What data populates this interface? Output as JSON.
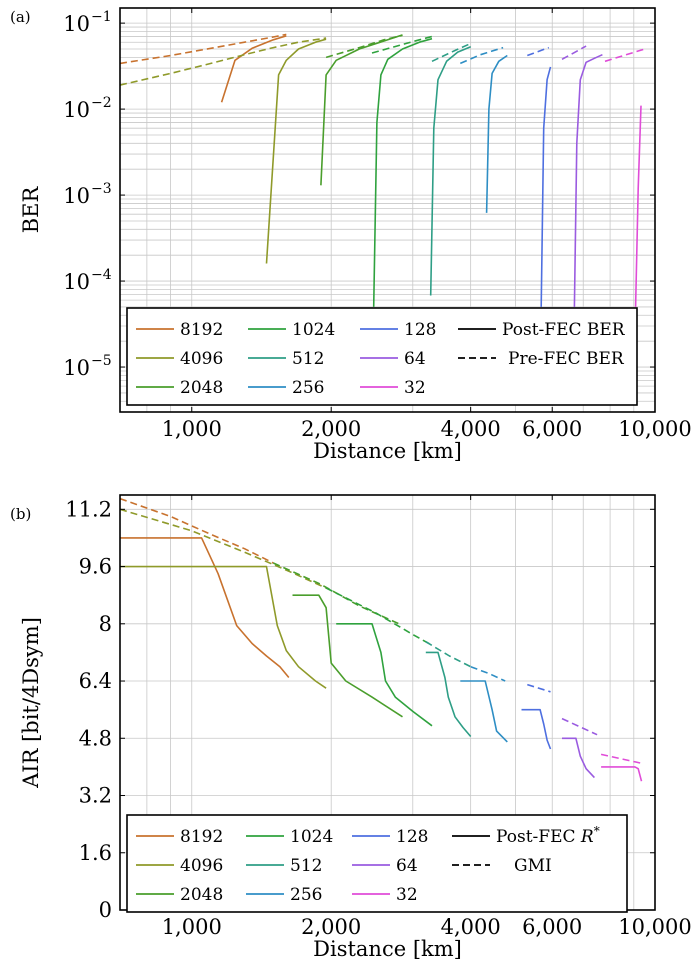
{
  "chart_data": [
    {
      "panel_label": "(a)",
      "type": "line",
      "xlabel": "Distance [km]",
      "ylabel": "BER",
      "xscale": "log",
      "yscale": "log",
      "xlim": [
        700,
        10000
      ],
      "ylim": [
        3e-06,
        0.15
      ],
      "xticks": [
        1000,
        2000,
        4000,
        6000,
        10000
      ],
      "xtick_labels": [
        "1,000",
        "2,000",
        "4,000",
        "6,000",
        "10,000"
      ],
      "yticks": [
        1e-05,
        0.0001,
        0.001,
        0.01,
        0.1
      ],
      "ytick_labels": [
        "10",
        "10",
        "10",
        "10",
        "10"
      ],
      "ytick_exponents": [
        "−5",
        "−4",
        "−3",
        "−2",
        "−1"
      ],
      "grid": true,
      "legend_placement": "bottom",
      "legend_style_labels": [
        "Post-FEC BER",
        "Pre-FEC BER"
      ],
      "series": [
        {
          "name": "8192",
          "color": "#C8722E",
          "pre": {
            "x": [
              700,
              900,
              1100,
              1300,
              1500,
              1600
            ],
            "y": [
              0.034,
              0.042,
              0.051,
              0.06,
              0.069,
              0.074
            ]
          },
          "post": {
            "x": [
              1160,
              1240,
              1350,
              1500,
              1600
            ],
            "y": [
              0.012,
              0.037,
              0.051,
              0.064,
              0.071
            ]
          }
        },
        {
          "name": "4096",
          "color": "#8F9A2A",
          "pre": {
            "x": [
              700,
              900,
              1100,
              1300,
              1500,
              1700,
              1950
            ],
            "y": [
              0.019,
              0.026,
              0.034,
              0.043,
              0.052,
              0.06,
              0.067
            ]
          },
          "post": {
            "x": [
              1450,
              1540,
              1600,
              1700,
              1850,
              1950
            ],
            "y": [
              0.00016,
              0.025,
              0.037,
              0.05,
              0.06,
              0.065
            ]
          }
        },
        {
          "name": "2048",
          "color": "#4A9E2C",
          "pre": {
            "x": [
              1950,
              2300,
              2600,
              2850
            ],
            "y": [
              0.04,
              0.052,
              0.064,
              0.072
            ]
          },
          "post": {
            "x": [
              1900,
              1950,
              2050,
              2300,
              2600,
              2850
            ],
            "y": [
              0.0013,
              0.025,
              0.037,
              0.05,
              0.062,
              0.073
            ]
          }
        },
        {
          "name": "1024",
          "color": "#2FA23E",
          "pre": {
            "x": [
              2450,
              2800,
              3100,
              3300
            ],
            "y": [
              0.045,
              0.055,
              0.064,
              0.07
            ]
          },
          "post": {
            "x": [
              2470,
              2510,
              2560,
              2650,
              2850,
              3100,
              3300
            ],
            "y": [
              5e-05,
              0.007,
              0.025,
              0.038,
              0.05,
              0.06,
              0.066
            ]
          }
        },
        {
          "name": "512",
          "color": "#2E9E86",
          "pre": {
            "x": [
              3300,
              3700,
              4000
            ],
            "y": [
              0.036,
              0.048,
              0.058
            ]
          },
          "post": {
            "x": [
              3280,
              3330,
              3400,
              3550,
              3750,
              4000
            ],
            "y": [
              6.8e-05,
              0.006,
              0.022,
              0.036,
              0.046,
              0.053
            ]
          }
        },
        {
          "name": "256",
          "color": "#2E8EC4",
          "pre": {
            "x": [
              3800,
              4200,
              4700
            ],
            "y": [
              0.034,
              0.043,
              0.052
            ]
          },
          "post": {
            "x": [
              4330,
              4380,
              4450,
              4600,
              4800
            ],
            "y": [
              0.00062,
              0.01,
              0.026,
              0.036,
              0.042
            ]
          }
        },
        {
          "name": "128",
          "color": "#4E6FE0",
          "pre": {
            "x": [
              5300,
              5900
            ],
            "y": [
              0.042,
              0.052
            ]
          },
          "post": {
            "x": [
              5680,
              5750,
              5850,
              5950
            ],
            "y": [
              5e-05,
              0.006,
              0.022,
              0.031
            ]
          }
        },
        {
          "name": "64",
          "color": "#9A5BE0",
          "pre": {
            "x": [
              6300,
              7100
            ],
            "y": [
              0.038,
              0.054
            ]
          },
          "post": {
            "x": [
              6700,
              6780,
              6900,
              7100,
              7400,
              7700
            ],
            "y": [
              5e-05,
              0.004,
              0.022,
              0.035,
              0.039,
              0.043
            ]
          }
        },
        {
          "name": "32",
          "color": "#E04CD8",
          "pre": {
            "x": [
              7800,
              9500
            ],
            "y": [
              0.036,
              0.05
            ]
          },
          "post": {
            "x": [
              9080,
              9200,
              9330
            ],
            "y": [
              5e-05,
              0.0012,
              0.011
            ]
          }
        }
      ]
    },
    {
      "panel_label": "(b)",
      "type": "line",
      "xlabel": "Distance [km]",
      "ylabel": "AIR [bit/4Dsym]",
      "xscale": "log",
      "yscale": "linear",
      "xlim": [
        700,
        10000
      ],
      "ylim": [
        0,
        11.6
      ],
      "xticks": [
        1000,
        2000,
        4000,
        6000,
        10000
      ],
      "xtick_labels": [
        "1,000",
        "2,000",
        "4,000",
        "6,000",
        "10,000"
      ],
      "yticks": [
        0,
        1.6,
        3.2,
        4.8,
        6.4,
        8,
        9.6,
        11.2
      ],
      "ytick_labels": [
        "0",
        "1.6",
        "3.2",
        "4.8",
        "6.4",
        "8",
        "9.6",
        "11.2"
      ],
      "grid": true,
      "legend_placement": "bottom",
      "legend_style_labels": [
        "Post-FEC",
        "GMI"
      ],
      "legend_style_math": "R",
      "legend_style_sup": "*",
      "series": [
        {
          "name": "8192",
          "color": "#C8722E",
          "gmi": {
            "x": [
              700,
              900,
              1100,
              1300,
              1500
            ],
            "y": [
              11.5,
              11.0,
              10.5,
              10.1,
              9.7
            ]
          },
          "post": {
            "x": [
              700,
              1050,
              1140,
              1250,
              1350,
              1450,
              1550,
              1620
            ],
            "y": [
              10.4,
              10.4,
              9.4,
              7.95,
              7.45,
              7.1,
              6.8,
              6.5
            ]
          }
        },
        {
          "name": "4096",
          "color": "#8F9A2A",
          "gmi": {
            "x": [
              700,
              1000,
              1300,
              1600,
              1950
            ],
            "y": [
              11.2,
              10.6,
              10.0,
              9.5,
              9.0
            ]
          },
          "post": {
            "x": [
              700,
              1450,
              1530,
              1600,
              1700,
              1850,
              1950
            ],
            "y": [
              9.6,
              9.6,
              7.95,
              7.25,
              6.8,
              6.4,
              6.2
            ]
          }
        },
        {
          "name": "2048",
          "color": "#4A9E2C",
          "gmi": {
            "x": [
              1500,
              1900,
              2300,
              2800
            ],
            "y": [
              9.7,
              9.1,
              8.5,
              8.0
            ]
          },
          "post": {
            "x": [
              1650,
              1880,
              1950,
              2000,
              2150,
              2450,
              2850
            ],
            "y": [
              8.8,
              8.8,
              8.45,
              6.9,
              6.4,
              5.95,
              5.4
            ]
          }
        },
        {
          "name": "1024",
          "color": "#2FA23E",
          "gmi": {
            "x": [
              1950,
              2500,
              3000,
              3300
            ],
            "y": [
              9.0,
              8.3,
              7.7,
              7.4
            ]
          },
          "post": {
            "x": [
              2050,
              2450,
              2560,
              2620,
              2750,
              3000,
              3300
            ],
            "y": [
              8.0,
              8.0,
              7.2,
              6.4,
              5.95,
              5.55,
              5.15
            ]
          }
        },
        {
          "name": "512",
          "color": "#2E9E86",
          "gmi": {
            "x": [
              3200,
              3600,
              4000
            ],
            "y": [
              7.5,
              7.1,
              6.8
            ]
          },
          "post": {
            "x": [
              3200,
              3400,
              3520,
              3580,
              3700,
              3850,
              4000
            ],
            "y": [
              7.2,
              7.2,
              6.5,
              5.95,
              5.4,
              5.1,
              4.85
            ]
          }
        },
        {
          "name": "256",
          "color": "#2E8EC4",
          "gmi": {
            "x": [
              4000,
              4400,
              4750
            ],
            "y": [
              6.8,
              6.6,
              6.4
            ]
          },
          "post": {
            "x": [
              3800,
              4300,
              4450,
              4550,
              4800
            ],
            "y": [
              6.4,
              6.4,
              5.6,
              5.0,
              4.7
            ]
          }
        },
        {
          "name": "128",
          "color": "#4E6FE0",
          "gmi": {
            "x": [
              5300,
              5950
            ],
            "y": [
              6.3,
              6.1
            ]
          },
          "post": {
            "x": [
              5150,
              5650,
              5750,
              5850,
              5950
            ],
            "y": [
              5.6,
              5.6,
              5.2,
              4.75,
              4.5
            ]
          }
        },
        {
          "name": "64",
          "color": "#9A5BE0",
          "gmi": {
            "x": [
              6300,
              7500
            ],
            "y": [
              5.35,
              4.9
            ]
          },
          "post": {
            "x": [
              6300,
              6750,
              6900,
              7100,
              7400
            ],
            "y": [
              4.8,
              4.8,
              4.3,
              3.95,
              3.7
            ]
          }
        },
        {
          "name": "32",
          "color": "#E04CD8",
          "gmi": {
            "x": [
              7650,
              9350
            ],
            "y": [
              4.35,
              4.1
            ]
          },
          "post": {
            "x": [
              7650,
              9050,
              9200,
              9350
            ],
            "y": [
              4.0,
              4.0,
              3.95,
              3.6
            ]
          }
        }
      ]
    }
  ]
}
